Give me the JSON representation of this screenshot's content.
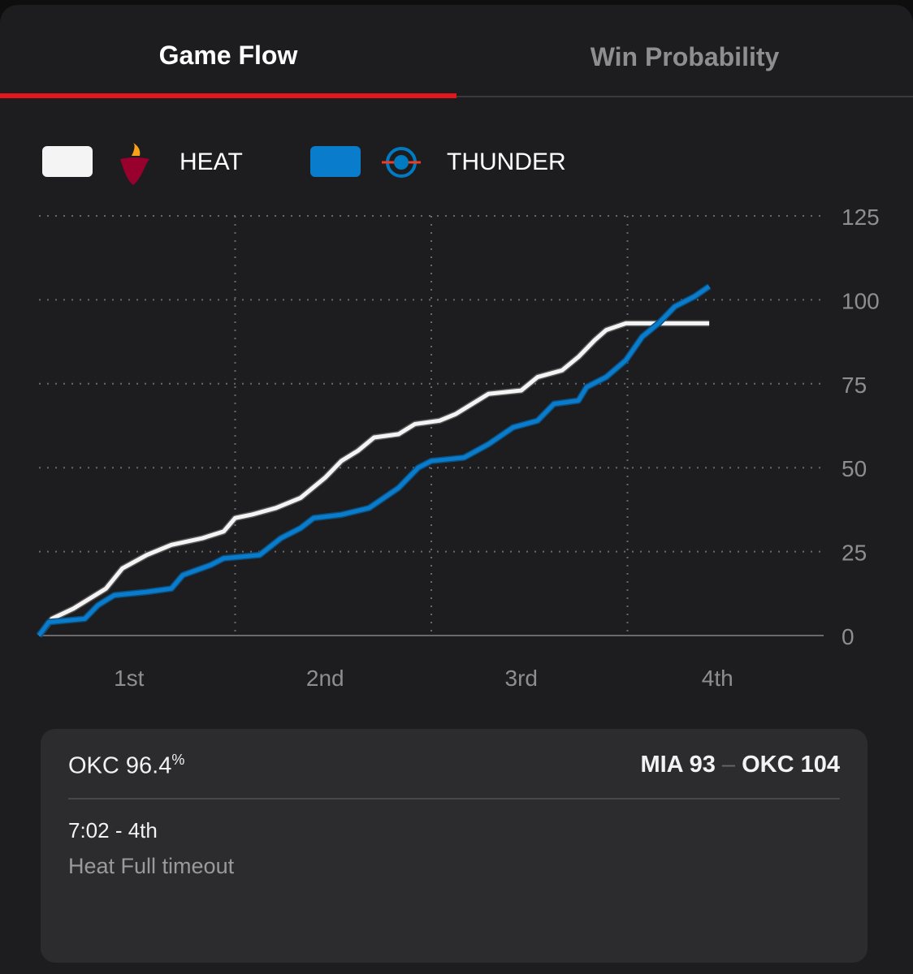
{
  "tabs": [
    "Game Flow",
    "Win Probability"
  ],
  "chart_data": {
    "type": "line",
    "x": null,
    "xlim": [
      0,
      48
    ],
    "xticks": [
      {
        "value": 6,
        "label": "1st"
      },
      {
        "value": 18,
        "label": "2nd"
      },
      {
        "value": 30,
        "label": "3rd"
      },
      {
        "value": 42,
        "label": "4th"
      }
    ],
    "ylim": [
      0,
      125
    ],
    "yticks": [
      0,
      25,
      50,
      75,
      100,
      125
    ],
    "grid": true,
    "series": [
      {
        "name": "HEAT",
        "color": "#f4f4f4",
        "x": [
          0,
          0.8,
          2.1,
          3.1,
          4.1,
          5.1,
          6.6,
          8.1,
          10,
          11.3,
          12,
          13,
          14.5,
          16,
          17.5,
          18.5,
          19.5,
          20.5,
          22,
          23,
          24.5,
          25.5,
          27.5,
          29.5,
          30.5,
          32,
          33,
          34,
          34.7,
          35.9,
          41
        ],
        "values": [
          0,
          5,
          8,
          11,
          14,
          20,
          24,
          27,
          29,
          31,
          35,
          36,
          38,
          41,
          47,
          52,
          55,
          59,
          60,
          63,
          64,
          66,
          72,
          73,
          77,
          79,
          83,
          88,
          91,
          93,
          93
        ]
      },
      {
        "name": "THUNDER",
        "color": "#0a7ccc",
        "x": [
          0,
          0.6,
          2.8,
          3.6,
          4.6,
          6.6,
          8.1,
          8.8,
          10.5,
          11.3,
          13.5,
          14.8,
          16,
          16.8,
          18.5,
          20.2,
          22,
          23.2,
          24,
          26,
          27.5,
          29,
          30.5,
          31.5,
          33,
          33.5,
          34.7,
          35.9,
          36.9,
          37.9,
          38.9,
          40.1,
          41
        ],
        "values": [
          0,
          4,
          5,
          9,
          12,
          13,
          14,
          18,
          21,
          23,
          24,
          29,
          32,
          35,
          36,
          38,
          44,
          50,
          52,
          53,
          57,
          62,
          64,
          69,
          70,
          74,
          77,
          82,
          89,
          93,
          98,
          101,
          104
        ]
      }
    ]
  },
  "card": {
    "team": "OKC",
    "probability": "96.4",
    "unit": "%",
    "score_left": "MIA 93",
    "dash": "–",
    "score_right": "OKC 104",
    "time": "7:02 - 4th",
    "event": "Heat Full timeout"
  }
}
